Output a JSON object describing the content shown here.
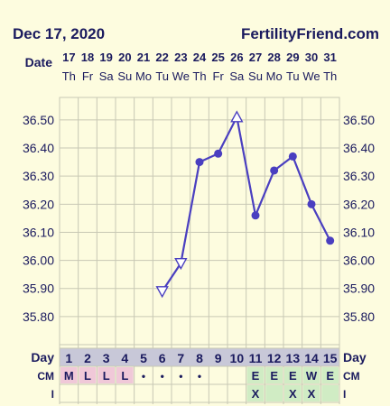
{
  "header": {
    "date": "Dec 17, 2020",
    "site": "FertilityFriend.com"
  },
  "chart_data": {
    "type": "line",
    "title": "",
    "row_labels": {
      "date": "Date",
      "day": "Day",
      "cm": "CM",
      "i": "I"
    },
    "dates": [
      "17",
      "18",
      "19",
      "20",
      "21",
      "22",
      "23",
      "24",
      "25",
      "26",
      "27",
      "28",
      "29",
      "30",
      "31"
    ],
    "weekdays": [
      "Th",
      "Fr",
      "Sa",
      "Su",
      "Mo",
      "Tu",
      "We",
      "Th",
      "Fr",
      "Sa",
      "Su",
      "Mo",
      "Tu",
      "We",
      "Th"
    ],
    "days": [
      "1",
      "2",
      "3",
      "4",
      "5",
      "6",
      "7",
      "8",
      "9",
      "10",
      "11",
      "12",
      "13",
      "14",
      "15"
    ],
    "cm": [
      "M",
      "L",
      "L",
      "L",
      "•",
      "•",
      "•",
      "•",
      "",
      "",
      "E",
      "E",
      "E",
      "W",
      "E"
    ],
    "cm_types": [
      "menses",
      "menses",
      "menses",
      "menses",
      "spot",
      "spot",
      "spot",
      "spot",
      "none",
      "none",
      "fluid",
      "fluid",
      "fluid",
      "fluid",
      "fluid"
    ],
    "intercourse": [
      "",
      "",
      "",
      "",
      "",
      "",
      "",
      "",
      "",
      "",
      "X",
      "",
      "X",
      "X",
      ""
    ],
    "y_ticks": [
      "35.80",
      "35.90",
      "36.00",
      "36.10",
      "36.20",
      "36.30",
      "36.40",
      "36.50"
    ],
    "ylim": [
      35.7,
      36.58
    ],
    "series": [
      {
        "x": [
          6,
          7,
          8,
          9,
          10,
          11,
          12,
          13,
          14,
          15
        ],
        "values": [
          35.89,
          35.99,
          36.35,
          36.38,
          36.51,
          36.16,
          36.32,
          36.37,
          36.2,
          36.07
        ],
        "markers": [
          "open-triangle-down",
          "open-triangle-down",
          "dot",
          "dot",
          "open-triangle-up",
          "dot",
          "dot",
          "dot",
          "dot",
          "dot"
        ]
      }
    ],
    "grid": true,
    "colors": {
      "line": "#4a3fc0",
      "text": "#1a1a5e",
      "grid": "#c8c8b4",
      "menses": "#f0c8d8",
      "fluid": "#d0ecc4",
      "day_header": "#c8c8d8"
    }
  }
}
